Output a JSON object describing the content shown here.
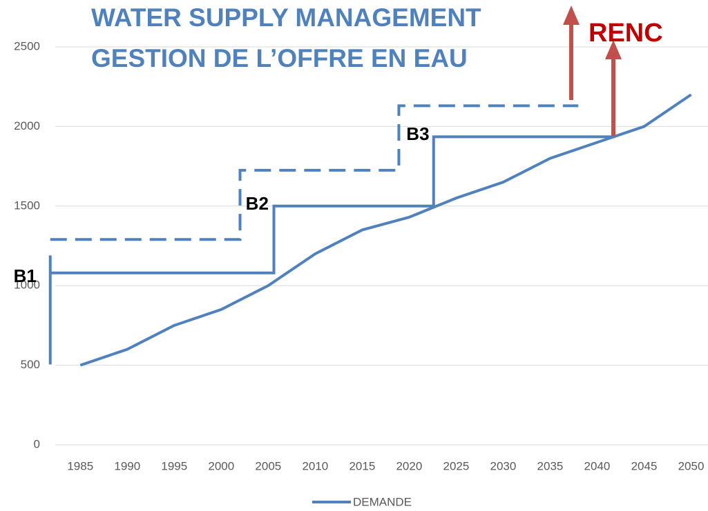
{
  "chart_data": {
    "type": "line",
    "title": [
      "WATER SUPPLY MANAGEMENT",
      "GESTION DE L’OFFRE EN EAU"
    ],
    "annotations": [
      {
        "text": "B1",
        "x": 1977.9,
        "y": 1053
      },
      {
        "text": "B2",
        "x": 2002.6,
        "y": 1508
      },
      {
        "text": "B3",
        "x": 2019.7,
        "y": 1945
      },
      {
        "text": "RENC"
      }
    ],
    "xlim": [
      1981.6,
      2051.8
    ],
    "xticks": [
      1985,
      1990,
      1995,
      2000,
      2005,
      2010,
      2015,
      2020,
      2025,
      2030,
      2035,
      2040,
      2045,
      2050
    ],
    "ylim": [
      0,
      2500
    ],
    "yticks": [
      0,
      500,
      1000,
      1500,
      2000,
      2500
    ],
    "grid": true,
    "legend": "bottom",
    "series": [
      {
        "name": "DEMANDE",
        "color": "#4f81bd",
        "style": "solid",
        "x": [
          1985,
          1990,
          1995,
          2000,
          2005,
          2010,
          2015,
          2020,
          2025,
          2030,
          2035,
          2040,
          2045,
          2050
        ],
        "values": [
          500,
          600,
          750,
          850,
          1000,
          1200,
          1350,
          1430,
          1550,
          1650,
          1800,
          1900,
          2000,
          2200
        ]
      },
      {
        "color": "#4f81bd",
        "style": "solid",
        "x": [
          1981.8,
          1981.8,
          1981.8,
          1981.8,
          2005.6,
          2005.6,
          2022.6,
          2022.6,
          2041.9
        ],
        "values": [
          505,
          1190,
          null,
          1080,
          1080,
          1500,
          1500,
          1935,
          1935
        ]
      },
      {
        "color": "#4f81bd",
        "style": "dashed",
        "x": [
          1981.8,
          2002.0,
          2002.0,
          2018.9,
          2018.9,
          2038.0
        ],
        "values": [
          1290,
          1290,
          1725,
          1725,
          2130,
          2130
        ]
      }
    ]
  }
}
